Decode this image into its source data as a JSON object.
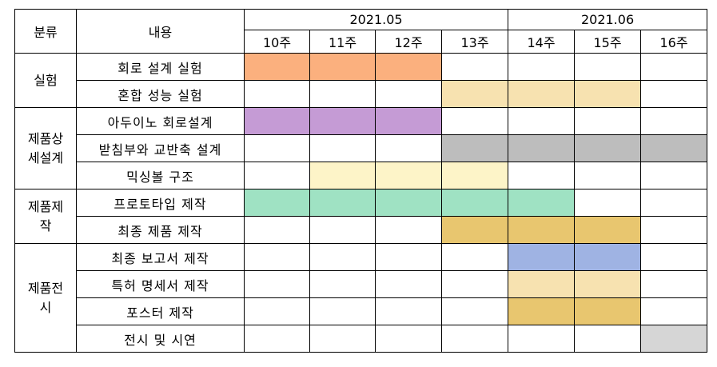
{
  "header": {
    "category": "분류",
    "content": "내용",
    "months": [
      "2021.05",
      "2021.06"
    ],
    "weeks": [
      "10주",
      "11주",
      "12주",
      "13주",
      "14주",
      "15주",
      "16주"
    ]
  },
  "categories": {
    "experiment": "실험",
    "detail_design_line1": "제품상",
    "detail_design_line2": "세설계",
    "production_line1": "제품제",
    "production_line2": "작",
    "exhibition_line1": "제품전",
    "exhibition_line2": "시"
  },
  "tasks": [
    {
      "label": "회로 설계 실험",
      "active": [
        true,
        true,
        true,
        false,
        false,
        false,
        false
      ],
      "color": "#fbb07e"
    },
    {
      "label": "혼합 성능 실험",
      "active": [
        false,
        false,
        false,
        true,
        true,
        true,
        false
      ],
      "color": "#f7e2b0"
    },
    {
      "label": "아두이노 회로설계",
      "active": [
        true,
        true,
        true,
        false,
        false,
        false,
        false
      ],
      "color": "#c59bd5"
    },
    {
      "label": "받침부와 교반축 설계",
      "active": [
        false,
        false,
        false,
        true,
        true,
        true,
        true
      ],
      "color": "#bdbdbd"
    },
    {
      "label": "믹싱볼 구조",
      "active": [
        false,
        true,
        true,
        true,
        false,
        false,
        false
      ],
      "color": "#fdf4c8"
    },
    {
      "label": "프로토타입 제작",
      "active": [
        true,
        true,
        true,
        true,
        true,
        false,
        false
      ],
      "color": "#9fe2c3"
    },
    {
      "label": "최종 제품 제작",
      "active": [
        false,
        false,
        false,
        true,
        true,
        true,
        false
      ],
      "color": "#e8c66f"
    },
    {
      "label": "최종 보고서 제작",
      "active": [
        false,
        false,
        false,
        false,
        true,
        true,
        false
      ],
      "color": "#9fb3e3"
    },
    {
      "label": "특허 명세서 제작",
      "active": [
        false,
        false,
        false,
        false,
        true,
        true,
        false
      ],
      "color": "#f7e2b0"
    },
    {
      "label": "포스터 제작",
      "active": [
        false,
        false,
        false,
        false,
        true,
        true,
        false
      ],
      "color": "#e8c66f"
    },
    {
      "label": "전시 및 시연",
      "active": [
        false,
        false,
        false,
        false,
        false,
        false,
        true
      ],
      "color": "#d6d6d6"
    }
  ]
}
